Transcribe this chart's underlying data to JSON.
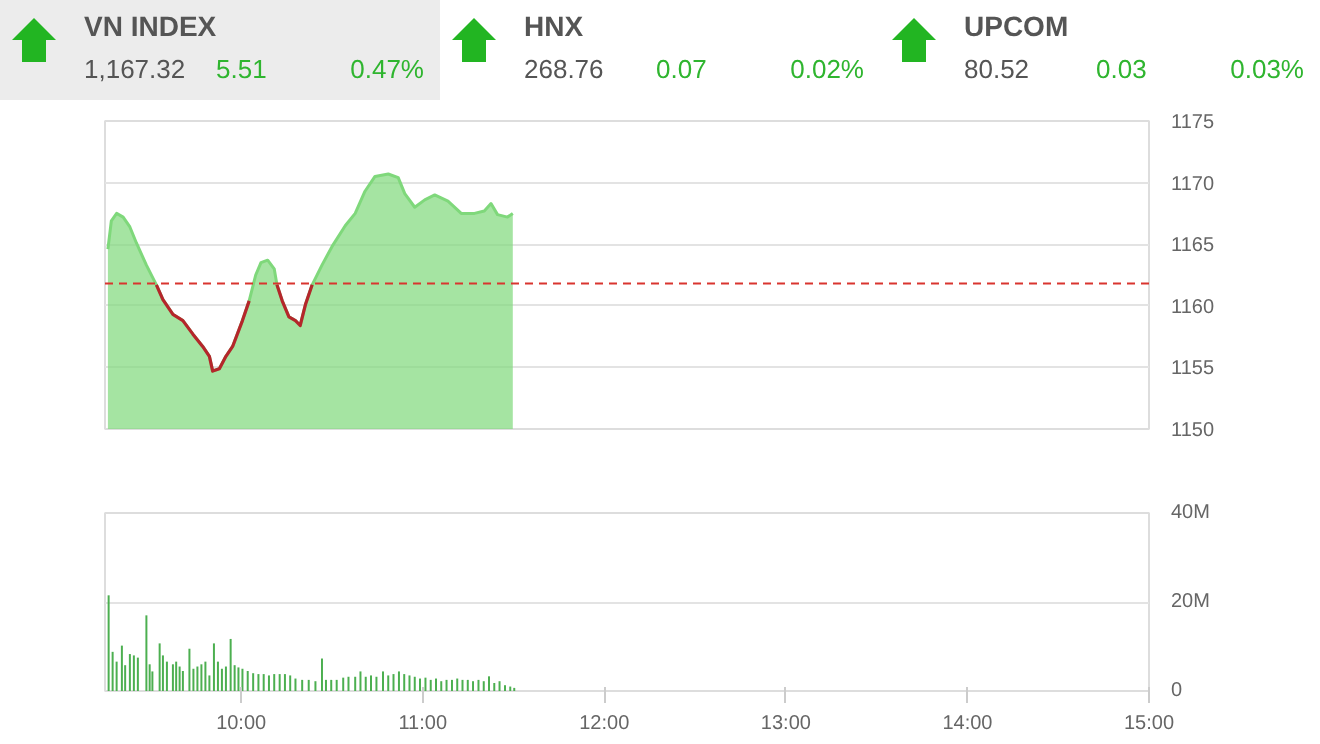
{
  "chart_data": [
    {
      "type": "other",
      "annotations": [
        "VN INDEX",
        "1,167.32",
        "5.51",
        "0.47%",
        "HNX",
        "268.76",
        "0.07",
        "0.02%",
        "UPCOM",
        "80.52",
        "0.03",
        "0.03%"
      ]
    },
    {
      "type": "area",
      "xlim": [
        9.25,
        15
      ],
      "ylim": [
        1150,
        1175
      ],
      "yticks": [
        1150,
        1155,
        1160,
        1165,
        1170,
        1175
      ],
      "tick_labels": "y",
      "grid": "y",
      "x": [
        9.266,
        9.285,
        9.314,
        9.35,
        9.387,
        9.423,
        9.478,
        9.533,
        9.569,
        9.624,
        9.679,
        9.734,
        9.788,
        9.825,
        9.843,
        9.88,
        9.916,
        9.953,
        10.007,
        10.044,
        10.08,
        10.109,
        10.146,
        10.182,
        10.197,
        10.226,
        10.263,
        10.299,
        10.325,
        10.354,
        10.391,
        10.445,
        10.5,
        10.573,
        10.628,
        10.682,
        10.737,
        10.81,
        10.865,
        10.901,
        10.956,
        11.011,
        11.066,
        11.139,
        11.212,
        11.285,
        11.339,
        11.376,
        11.412,
        11.467,
        11.496
      ],
      "series": [
        {
          "type": "area",
          "color": "#7fd87b",
          "values": [
            1164.6,
            1166.9,
            1167.5,
            1167.2,
            1166.4,
            1165.1,
            1163.3,
            1161.7,
            1160.5,
            1159.3,
            1158.8,
            1157.7,
            1156.7,
            1155.9,
            1154.7,
            1154.9,
            1155.9,
            1156.7,
            1158.8,
            1160.4,
            1162.5,
            1163.5,
            1163.7,
            1163.0,
            1161.7,
            1160.4,
            1159.1,
            1158.8,
            1158.4,
            1160.1,
            1161.7,
            1163.3,
            1164.8,
            1166.5,
            1167.5,
            1169.3,
            1170.5,
            1170.7,
            1170.4,
            1169.1,
            1168.0,
            1168.6,
            1169.0,
            1168.5,
            1167.5,
            1167.5,
            1167.7,
            1168.3,
            1167.4,
            1167.2,
            1167.5
          ]
        },
        {
          "type": "line",
          "color": "#b5262b",
          "values": [
            null,
            null,
            null,
            null,
            null,
            null,
            null,
            1161.7,
            1160.5,
            1159.3,
            1158.8,
            1157.7,
            1156.7,
            1155.9,
            1154.7,
            1154.9,
            1155.9,
            1156.7,
            1158.8,
            1160.4,
            null,
            null,
            null,
            null,
            1161.7,
            1160.4,
            1159.1,
            1158.8,
            1158.4,
            1160.1,
            1161.7,
            null,
            null,
            null,
            null,
            null,
            null,
            null,
            null,
            null,
            null,
            null,
            null,
            null,
            null,
            null,
            null,
            null,
            null,
            null,
            null
          ]
        }
      ],
      "ref_lines": [
        {
          "axis": "y",
          "value": 1161.81,
          "color": "#d9352f",
          "line_style": "dashed"
        }
      ]
    },
    {
      "type": "bar",
      "xlim": [
        9.25,
        15
      ],
      "ylim": [
        0,
        40
      ],
      "grid": "y",
      "xticks": [
        {
          "value": 10,
          "label": "10:00"
        },
        {
          "value": 11,
          "label": "11:00"
        },
        {
          "value": 12,
          "label": "12:00"
        },
        {
          "value": 13,
          "label": "13:00"
        },
        {
          "value": 14,
          "label": "14:00"
        },
        {
          "value": 15,
          "label": "15:00"
        }
      ],
      "yticks": [
        0,
        {
          "value": 20,
          "label": "20M"
        },
        {
          "value": 40,
          "label": "40M"
        }
      ],
      "color": "#4caf50",
      "x": [
        9.27,
        9.292,
        9.314,
        9.343,
        9.361,
        9.387,
        9.409,
        9.431,
        9.478,
        9.496,
        9.511,
        9.551,
        9.569,
        9.591,
        9.624,
        9.642,
        9.661,
        9.679,
        9.715,
        9.737,
        9.759,
        9.781,
        9.803,
        9.825,
        9.85,
        9.872,
        9.894,
        9.916,
        9.942,
        9.964,
        9.985,
        10.007,
        10.036,
        10.066,
        10.095,
        10.124,
        10.153,
        10.182,
        10.212,
        10.241,
        10.27,
        10.299,
        10.336,
        10.372,
        10.409,
        10.445,
        10.467,
        10.496,
        10.526,
        10.562,
        10.591,
        10.628,
        10.657,
        10.686,
        10.715,
        10.745,
        10.781,
        10.81,
        10.839,
        10.869,
        10.898,
        10.927,
        10.956,
        10.985,
        11.015,
        11.044,
        11.073,
        11.102,
        11.131,
        11.161,
        11.19,
        11.219,
        11.248,
        11.277,
        11.307,
        11.336,
        11.365,
        11.394,
        11.423,
        11.453,
        11.482,
        11.504
      ],
      "values": [
        21.5,
        8.8,
        6.6,
        10.2,
        5.8,
        8.3,
        8.0,
        7.5,
        17.0,
        6.0,
        4.4,
        10.7,
        8.0,
        6.6,
        6.0,
        6.6,
        5.5,
        4.5,
        9.5,
        5.0,
        5.5,
        6.0,
        6.6,
        3.5,
        10.7,
        6.6,
        5.0,
        5.5,
        11.7,
        5.8,
        5.3,
        5.0,
        4.5,
        4.0,
        3.8,
        3.8,
        3.5,
        3.8,
        3.8,
        3.8,
        3.5,
        2.8,
        2.5,
        2.5,
        2.2,
        7.3,
        2.5,
        2.5,
        2.5,
        3.0,
        3.2,
        3.2,
        4.4,
        3.2,
        3.5,
        3.2,
        4.4,
        3.5,
        3.8,
        4.4,
        3.8,
        3.5,
        3.2,
        2.8,
        3.0,
        2.5,
        2.8,
        2.2,
        2.5,
        2.5,
        2.8,
        2.5,
        2.5,
        2.2,
        2.5,
        2.2,
        3.3,
        1.8,
        2.2,
        1.3,
        1.0,
        0.7
      ]
    }
  ]
}
